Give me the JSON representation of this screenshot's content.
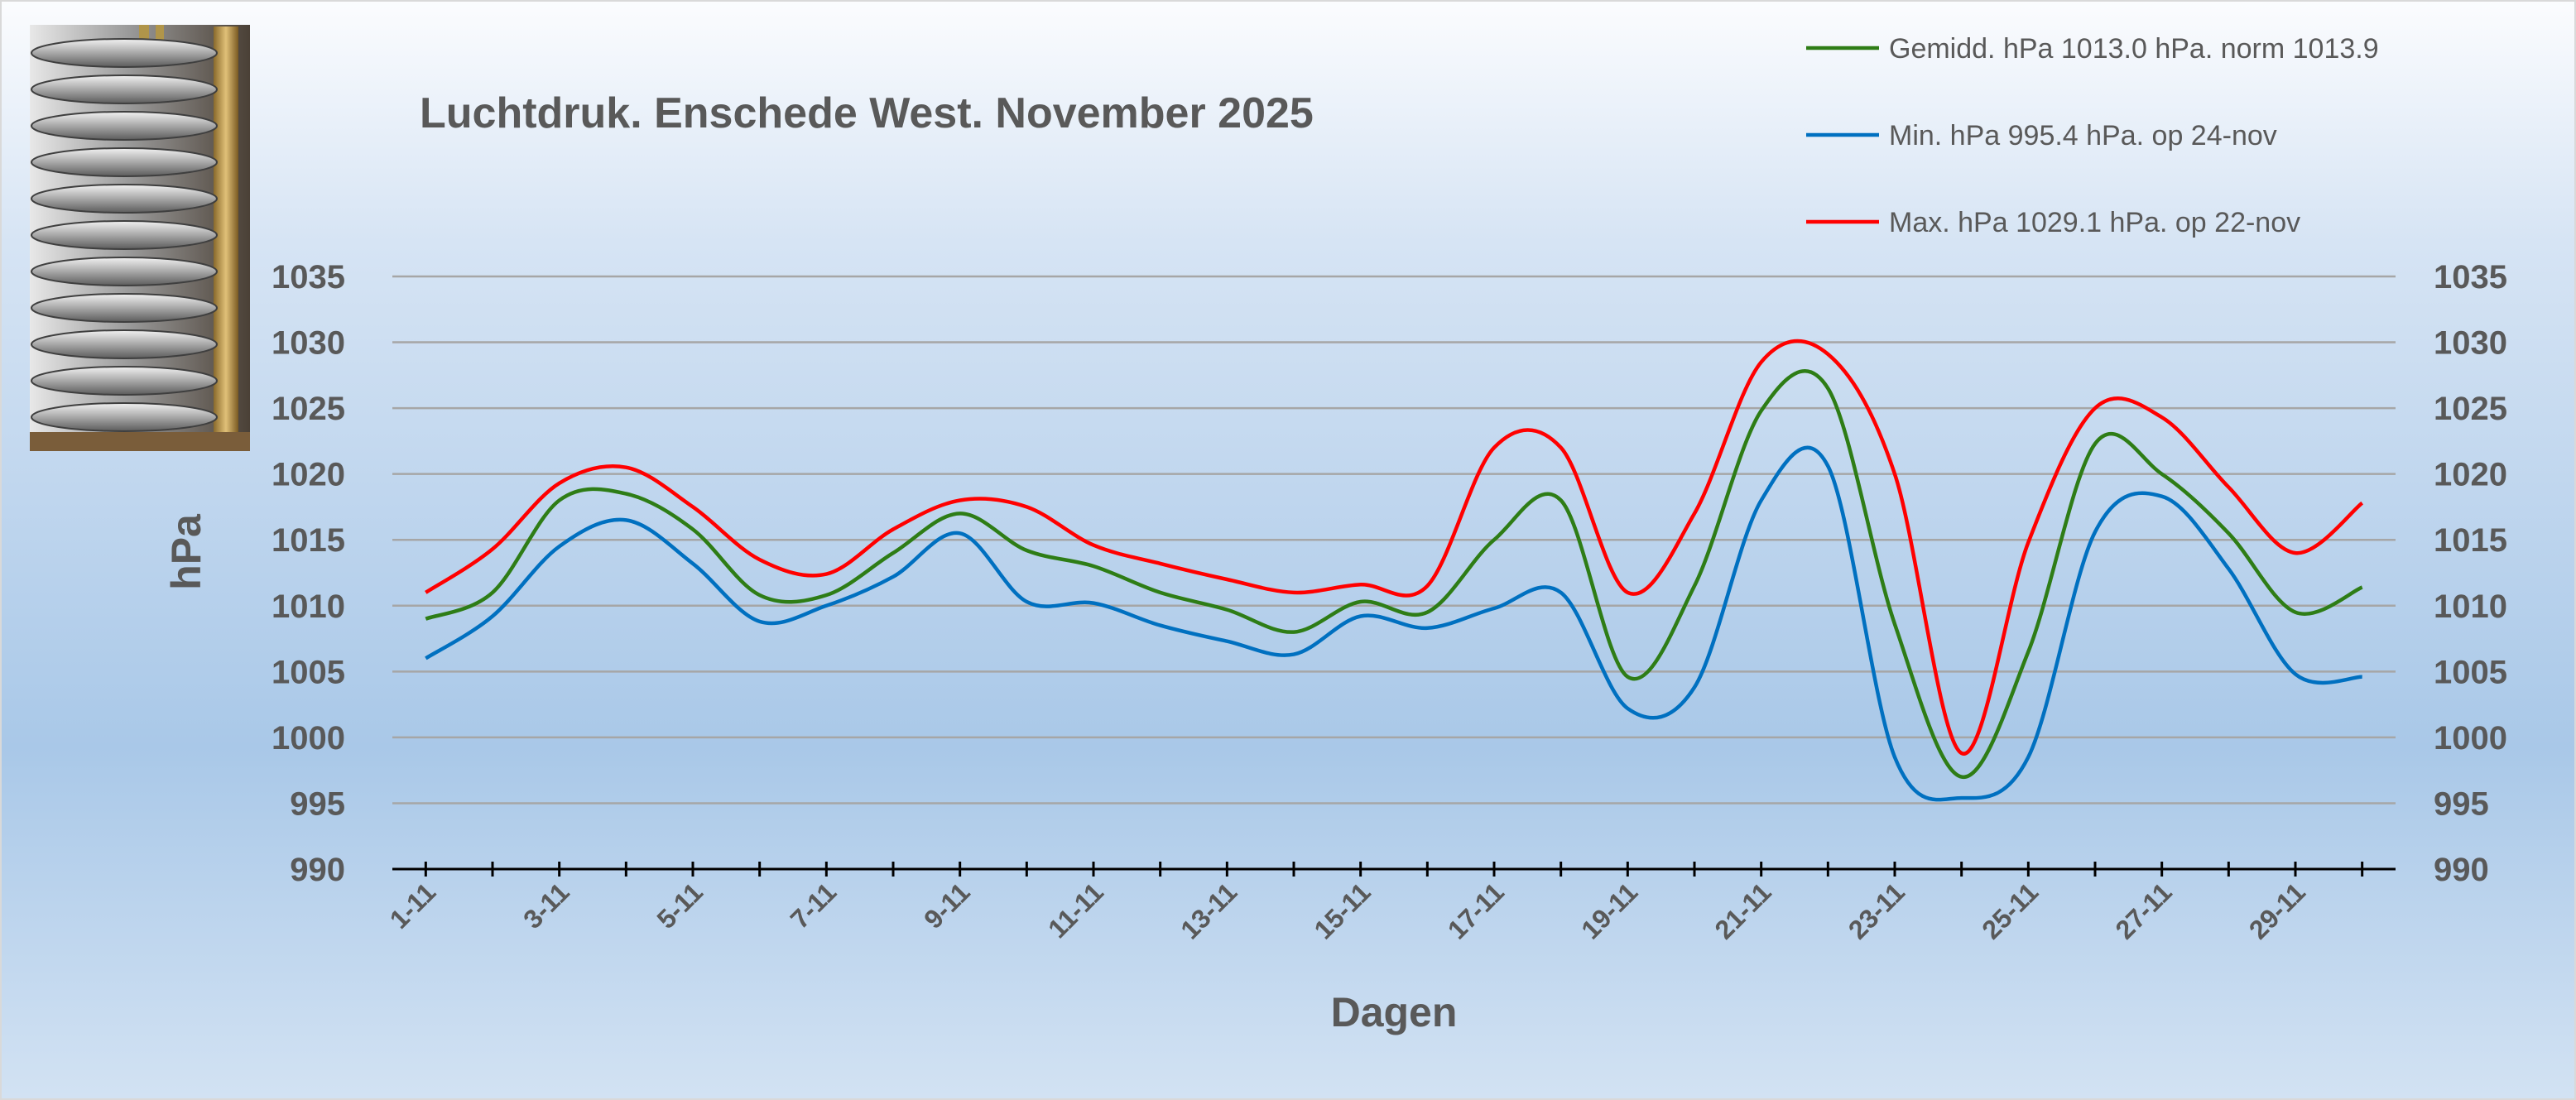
{
  "chart_data": {
    "type": "line",
    "title": "Luchtdruk. Enschede West. November 2025",
    "xlabel": "Dagen",
    "ylabel": "hPa",
    "ylim": [
      990,
      1035
    ],
    "yticks": [
      990,
      995,
      1000,
      1005,
      1010,
      1015,
      1020,
      1025,
      1030,
      1035
    ],
    "right_axis": true,
    "grid": true,
    "legend_position": "top-right",
    "x": [
      "1-11",
      "2-11",
      "3-11",
      "4-11",
      "5-11",
      "6-11",
      "7-11",
      "8-11",
      "9-11",
      "10-11",
      "11-11",
      "12-11",
      "13-11",
      "14-11",
      "15-11",
      "16-11",
      "17-11",
      "18-11",
      "19-11",
      "20-11",
      "21-11",
      "22-11",
      "23-11",
      "24-11",
      "25-11",
      "26-11",
      "27-11",
      "28-11",
      "29-11",
      "30-11"
    ],
    "xtick_labels": [
      "1-11",
      "3-11",
      "5-11",
      "7-11",
      "9-11",
      "11-11",
      "13-11",
      "15-11",
      "17-11",
      "19-11",
      "21-11",
      "23-11",
      "25-11",
      "27-11",
      "29-11"
    ],
    "series": [
      {
        "name": "Gemidd. hPa 1013.0 hPa.  norm 1013.9",
        "color": "#2e7d16",
        "values": [
          1009.0,
          1011.0,
          1018.0,
          1018.5,
          1015.8,
          1010.8,
          1010.8,
          1014.0,
          1017.0,
          1014.2,
          1013.0,
          1011.0,
          1009.7,
          1008.0,
          1010.3,
          1009.5,
          1015.0,
          1018.0,
          1004.6,
          1011.5,
          1024.8,
          1026.5,
          1008.6,
          997.0,
          1006.5,
          1022.3,
          1020.0,
          1015.5,
          1009.5,
          1011.4
        ]
      },
      {
        "name": "Min. hPa 995.4 hPa. op 24-nov",
        "color": "#0070c0",
        "values": [
          1006.0,
          1009.2,
          1014.5,
          1016.5,
          1013.2,
          1008.8,
          1010.0,
          1012.2,
          1015.5,
          1010.3,
          1010.2,
          1008.5,
          1007.3,
          1006.3,
          1009.2,
          1008.3,
          1009.8,
          1011.0,
          1002.2,
          1003.8,
          1018.0,
          1020.6,
          998.5,
          995.4,
          998.5,
          1015.6,
          1018.3,
          1012.8,
          1004.8,
          1004.6
        ]
      },
      {
        "name": "Max. hPa 1029.1 hPa.  op 22-nov",
        "color": "#ff0000",
        "values": [
          1011.0,
          1014.3,
          1019.3,
          1020.5,
          1017.5,
          1013.5,
          1012.4,
          1015.8,
          1018.0,
          1017.5,
          1014.6,
          1013.2,
          1012.0,
          1011.0,
          1011.6,
          1011.5,
          1022.0,
          1022.0,
          1011.0,
          1017.0,
          1028.5,
          1029.1,
          1020.0,
          998.8,
          1014.8,
          1025.0,
          1024.3,
          1019.0,
          1014.0,
          1017.8
        ]
      }
    ]
  }
}
